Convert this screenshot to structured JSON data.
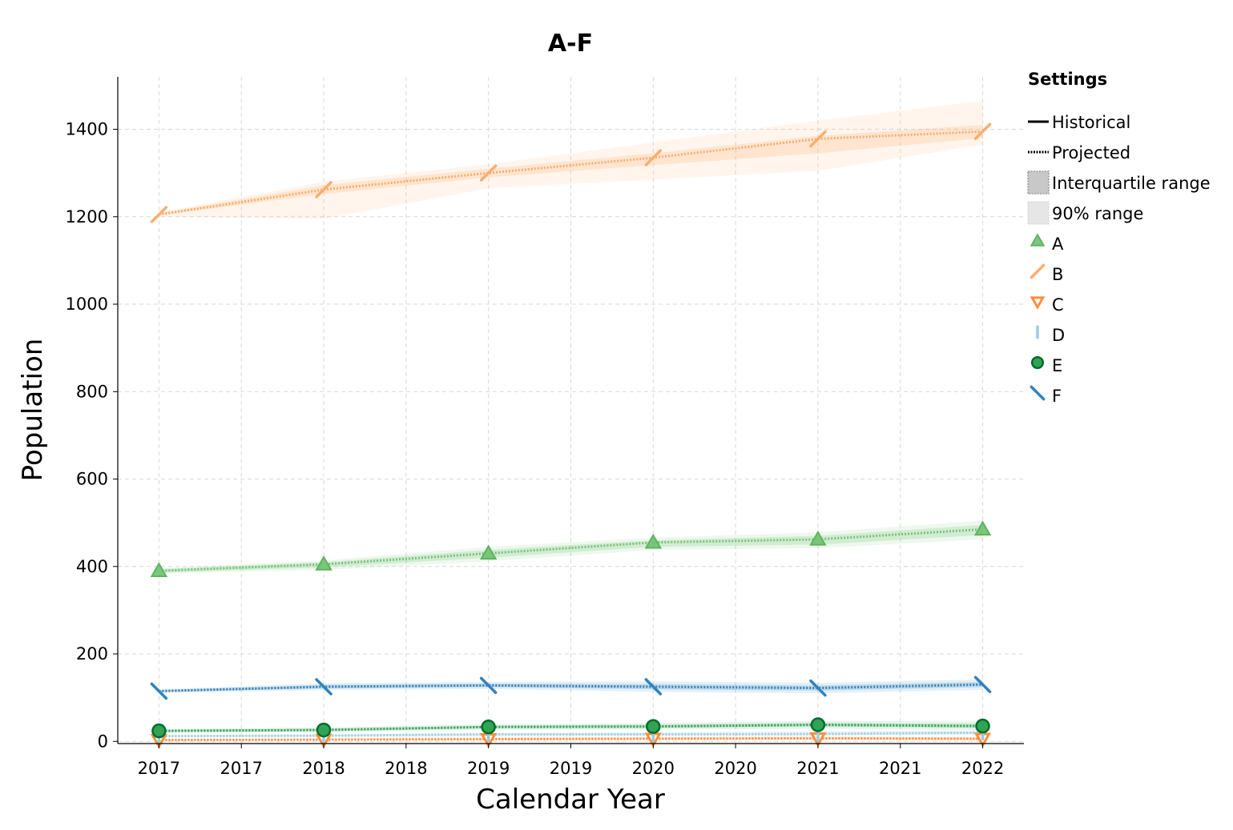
{
  "chart_data": {
    "type": "line",
    "title": "A-F",
    "xlabel": "Calendar Year",
    "ylabel": "Population",
    "x": [
      2017,
      2018,
      2019,
      2020,
      2021,
      2022
    ],
    "xlim": [
      2016.75,
      2022.25
    ],
    "ylim": [
      -5,
      1520
    ],
    "x_ticks": [
      2017,
      2017.5,
      2018,
      2018.5,
      2019,
      2019.5,
      2020,
      2020.5,
      2021,
      2021.5,
      2022
    ],
    "x_tick_labels": [
      "2017",
      "2017",
      "2018",
      "2018",
      "2019",
      "2019",
      "2020",
      "2020",
      "2021",
      "2021",
      "2022"
    ],
    "y_ticks": [
      0,
      200,
      400,
      600,
      800,
      1000,
      1200,
      1400
    ],
    "y_tick_labels": [
      "0",
      "200",
      "400",
      "600",
      "800",
      "1000",
      "1200",
      "1400"
    ],
    "grid": true,
    "legend_placement": "right",
    "legend": {
      "title": "Settings",
      "style_items": [
        {
          "label": "Historical",
          "kind": "solid-line"
        },
        {
          "label": "Projected",
          "kind": "dotted-line"
        },
        {
          "label": "Interquartile range",
          "kind": "iqr-box"
        },
        {
          "label": "90% range",
          "kind": "range-box"
        }
      ]
    },
    "series": [
      {
        "name": "A",
        "color": "#74c476",
        "marker": "triangle-up",
        "values": [
          390,
          405,
          430,
          455,
          462,
          485
        ],
        "iqr_low": [
          386,
          398,
          420,
          445,
          450,
          472
        ],
        "iqr_high": [
          394,
          410,
          438,
          460,
          470,
          495
        ],
        "p90_low": [
          384,
          392,
          412,
          438,
          442,
          462
        ],
        "p90_high": [
          396,
          414,
          445,
          466,
          478,
          505
        ]
      },
      {
        "name": "B",
        "color": "#fdae6b",
        "marker": "slash",
        "values": [
          1205,
          1262,
          1300,
          1335,
          1378,
          1395
        ],
        "iqr_low": [
          1203,
          1252,
          1290,
          1318,
          1345,
          1380
        ],
        "iqr_high": [
          1208,
          1272,
          1310,
          1345,
          1385,
          1410
        ],
        "p90_low": [
          1200,
          1195,
          1265,
          1285,
          1305,
          1365
        ],
        "p90_high": [
          1210,
          1280,
          1320,
          1370,
          1420,
          1465
        ]
      },
      {
        "name": "C",
        "color": "#fd8d3c",
        "marker": "triangle-down",
        "values": [
          3,
          4,
          5,
          6,
          7,
          6
        ],
        "iqr_low": [
          2,
          3,
          4,
          5,
          5,
          4
        ],
        "iqr_high": [
          4,
          5,
          7,
          8,
          9,
          8
        ],
        "p90_low": [
          1,
          2,
          3,
          3,
          3,
          2
        ],
        "p90_high": [
          5,
          7,
          9,
          10,
          11,
          10
        ]
      },
      {
        "name": "D",
        "color": "#9ecae1",
        "marker": "vline",
        "values": [
          12,
          13,
          16,
          16,
          17,
          20
        ],
        "iqr_low": [
          11,
          12,
          14,
          14,
          15,
          17
        ],
        "iqr_high": [
          13,
          15,
          18,
          19,
          20,
          23
        ],
        "p90_low": [
          10,
          10,
          12,
          12,
          12,
          14
        ],
        "p90_high": [
          14,
          17,
          20,
          22,
          24,
          27
        ]
      },
      {
        "name": "E",
        "color": "#31a354",
        "marker": "circle",
        "values": [
          24,
          26,
          33,
          34,
          38,
          35
        ],
        "iqr_low": [
          22,
          24,
          30,
          31,
          34,
          31
        ],
        "iqr_high": [
          26,
          29,
          36,
          38,
          42,
          40
        ],
        "p90_low": [
          20,
          21,
          27,
          27,
          29,
          26
        ],
        "p90_high": [
          28,
          32,
          39,
          42,
          47,
          45
        ]
      },
      {
        "name": "F",
        "color": "#3182bd",
        "marker": "backslash",
        "values": [
          115,
          125,
          128,
          125,
          122,
          130
        ],
        "iqr_low": [
          113,
          121,
          124,
          119,
          116,
          124
        ],
        "iqr_high": [
          117,
          129,
          132,
          131,
          128,
          136
        ],
        "p90_low": [
          111,
          117,
          120,
          113,
          110,
          118
        ],
        "p90_high": [
          119,
          133,
          136,
          137,
          134,
          142
        ]
      }
    ]
  }
}
